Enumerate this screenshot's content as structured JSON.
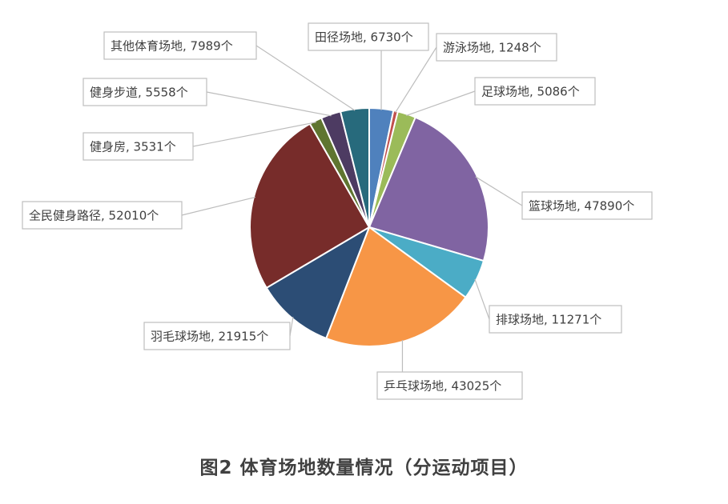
{
  "chart_data": {
    "type": "pie",
    "caption": "图2  体育场地数量情况（分运动项目）",
    "unit": "个",
    "slices": [
      {
        "name": "田径场地",
        "value": 6730,
        "color": "#4f81bd"
      },
      {
        "name": "游泳场地",
        "value": 1248,
        "color": "#c0504d"
      },
      {
        "name": "足球场地",
        "value": 5086,
        "color": "#9bbb59"
      },
      {
        "name": "篮球场地",
        "value": 47890,
        "color": "#8064a2"
      },
      {
        "name": "排球场地",
        "value": 11271,
        "color": "#4bacc6"
      },
      {
        "name": "乒乓球场地",
        "value": 43025,
        "color": "#f79646"
      },
      {
        "name": "羽毛球场地",
        "value": 21915,
        "color": "#2c4d75"
      },
      {
        "name": "全民健身路径",
        "value": 52010,
        "color": "#772c2a"
      },
      {
        "name": "健身房",
        "value": 3531,
        "color": "#5f7530"
      },
      {
        "name": "健身步道",
        "value": 5558,
        "color": "#4d3b62"
      },
      {
        "name": "其他体育场地",
        "value": 7989,
        "color": "#276a7c"
      }
    ]
  }
}
